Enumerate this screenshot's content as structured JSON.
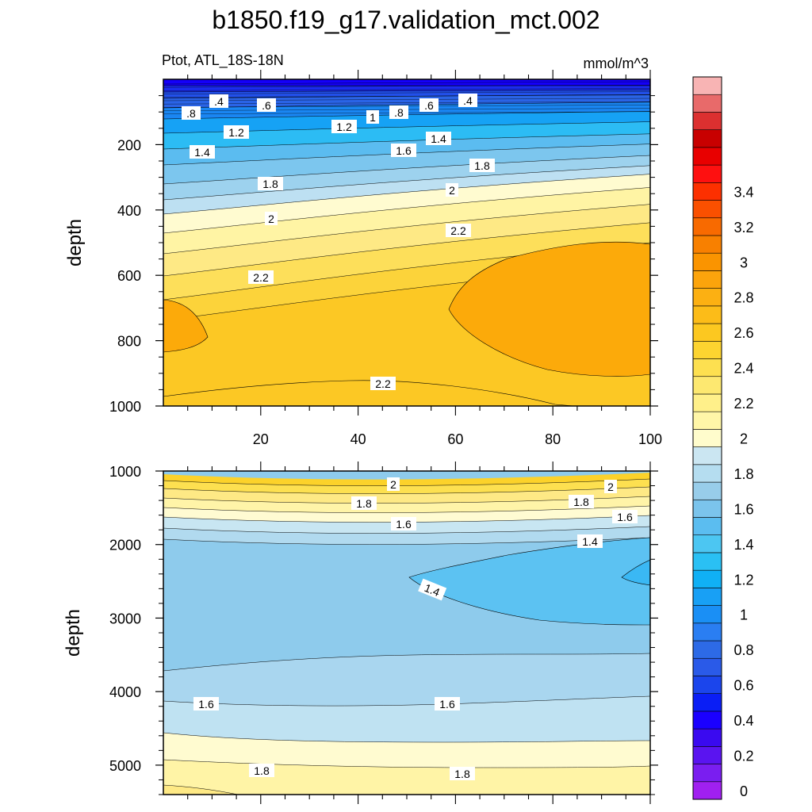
{
  "chart_data": {
    "type": "heatmap",
    "title": "b1850.f19_g17.validation_mct.002",
    "subtitle_left": "Ptot, ATL_18S-18N",
    "units": "mmol/m^3",
    "colorbar": {
      "levels": [
        0,
        0.1,
        0.2,
        0.3,
        0.4,
        0.5,
        0.6,
        0.7,
        0.8,
        0.9,
        1,
        1.1,
        1.2,
        1.3,
        1.4,
        1.5,
        1.6,
        1.7,
        1.8,
        1.9,
        2,
        2.1,
        2.2,
        2.3,
        2.4,
        2.5,
        2.6,
        2.7,
        2.8,
        2.9,
        3,
        3.1,
        3.2,
        3.3,
        3.4,
        3.5
      ],
      "labels": [
        "0",
        "0.2",
        "0.4",
        "0.6",
        "0.8",
        "1",
        "1.2",
        "1.4",
        "1.6",
        "1.8",
        "2",
        "2.2",
        "2.4",
        "2.6",
        "2.8",
        "3",
        "3.2",
        "3.4"
      ],
      "colors": [
        "#a020f0",
        "#7a1ef0",
        "#5a14f0",
        "#3a0af0",
        "#1a00ff",
        "#0a1ef5",
        "#1b45ec",
        "#2a5ae8",
        "#2d6ae6",
        "#2a7ef2",
        "#1a8ff5",
        "#18a0f5",
        "#10b0f5",
        "#2ac0f4",
        "#4cc6f2",
        "#5bbdf0",
        "#7bc4ec",
        "#98cdea",
        "#b5ddf0",
        "#cbe6f2",
        "#fffccc",
        "#fff6a8",
        "#fff08a",
        "#fde870",
        "#fde050",
        "#fdd430",
        "#fcc820",
        "#fcbc18",
        "#fcb012",
        "#fca40c",
        "#fa9400",
        "#f88000",
        "#f86a00",
        "#fa5000",
        "#fc3000",
        "#fe1010",
        "#e80000",
        "#c80000",
        "#dc3030",
        "#e86a6a",
        "#f8b4b4"
      ]
    },
    "panels": [
      {
        "name": "upper",
        "ylabel": "depth",
        "y_range": [
          0,
          1000
        ],
        "y_ticks": [
          200,
          400,
          600,
          800,
          1000
        ],
        "x_range": [
          0,
          100
        ],
        "x_ticks": [
          20,
          40,
          60,
          80,
          100
        ],
        "contour_labels": [
          ".4",
          ".4",
          ".6",
          ".6",
          ".8",
          ".8",
          "1",
          "1.2",
          "1.2",
          "1.4",
          "1.4",
          "1.6",
          "1.8",
          "1.8",
          "2",
          "2",
          "2.2",
          "2.2",
          "2.2"
        ]
      },
      {
        "name": "lower",
        "ylabel": "depth",
        "y_range": [
          1000,
          5400
        ],
        "y_ticks": [
          1000,
          2000,
          3000,
          4000,
          5000
        ],
        "x_range": [
          0,
          100
        ],
        "x_ticks": [],
        "contour_labels": [
          "2",
          "2",
          "1.8",
          "1.8",
          "1.6",
          "1.6",
          "1.4",
          "1.4",
          "1.6",
          "1.6",
          "1.8",
          "1.8"
        ]
      }
    ]
  }
}
